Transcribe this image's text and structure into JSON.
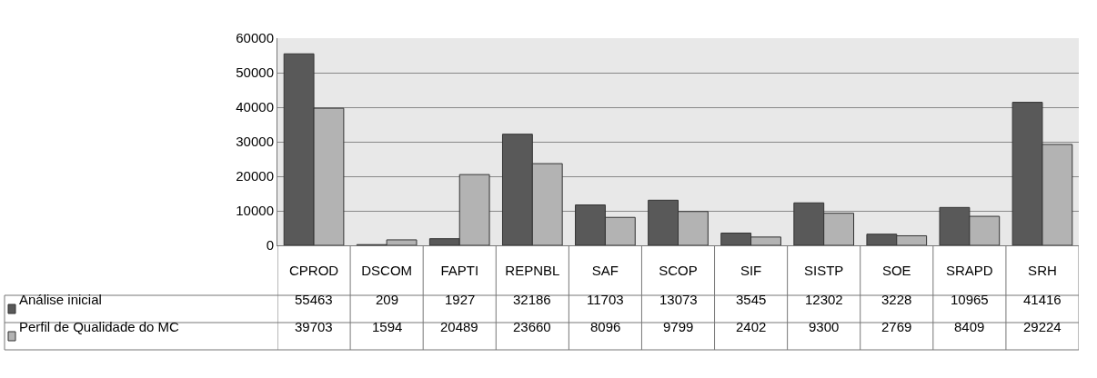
{
  "chart_data": {
    "type": "bar",
    "categories": [
      "CPROD",
      "DSCOM",
      "FAPTI",
      "REPNBL",
      "SAF",
      "SCOP",
      "SIF",
      "SISTP",
      "SOE",
      "SRAPD",
      "SRH"
    ],
    "series": [
      {
        "name": "Análise inicial",
        "color": "#595959",
        "values": [
          55463,
          209,
          1927,
          32186,
          11703,
          13073,
          3545,
          12302,
          3228,
          10965,
          41416
        ]
      },
      {
        "name": "Perfil de Qualidade do MC",
        "color": "#b3b3b3",
        "values": [
          39703,
          1594,
          20489,
          23660,
          8096,
          9799,
          2402,
          9300,
          2769,
          8409,
          29224
        ]
      }
    ],
    "ylim": [
      0,
      60000
    ],
    "yticks": [
      0,
      10000,
      20000,
      30000,
      40000,
      50000,
      60000
    ],
    "grid": "y",
    "legend": "bottom left",
    "data_labels": true
  }
}
